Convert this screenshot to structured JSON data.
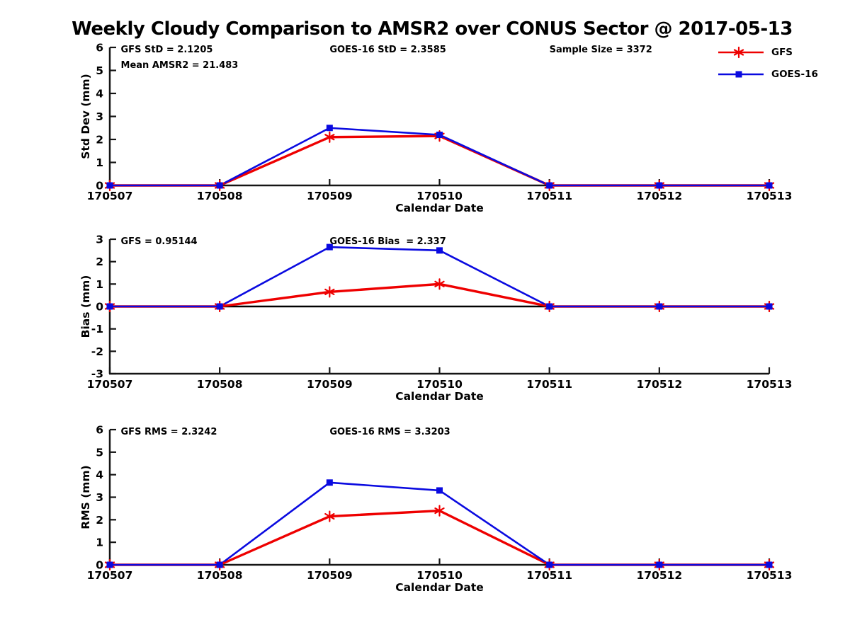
{
  "title": "Weekly Cloudy Comparison to AMSR2 over CONUS Sector @ 2017-05-13",
  "colors": {
    "gfs": "#ee0000",
    "goes": "#0a0ae0",
    "axis": "#151515",
    "zero_line": "#000000"
  },
  "legend": {
    "items": [
      {
        "name": "GFS",
        "color": "#ee0000",
        "marker": "asterisk"
      },
      {
        "name": "GOES-16",
        "color": "#0a0ae0",
        "marker": "square"
      }
    ]
  },
  "chart_data": [
    {
      "type": "line",
      "ylabel": "Std Dev (mm)",
      "xlabel": "Calendar Date",
      "categories": [
        "170507",
        "170508",
        "170509",
        "170510",
        "170511",
        "170512",
        "170513"
      ],
      "ylim": [
        0,
        6
      ],
      "yticks": [
        0,
        1,
        2,
        3,
        4,
        5,
        6
      ],
      "zero_line": false,
      "series": [
        {
          "name": "GFS",
          "marker": "asterisk",
          "color": "#ee0000",
          "values": [
            0,
            0,
            2.1,
            2.15,
            0,
            0,
            0
          ]
        },
        {
          "name": "GOES-16",
          "marker": "square",
          "color": "#0a0ae0",
          "values": [
            0,
            0,
            2.5,
            2.2,
            0,
            0,
            0
          ]
        }
      ],
      "annotations": [
        {
          "text": "GFS StD = 2.1205",
          "col": 0.1,
          "row": 0
        },
        {
          "text": "Mean AMSR2 = 21.483",
          "col": 0.1,
          "row": 1
        },
        {
          "text": "GOES-16 StD = 2.3585",
          "col": 2,
          "row": 0
        },
        {
          "text": "Sample Size = 3372",
          "col": 4,
          "row": 0
        }
      ]
    },
    {
      "type": "line",
      "ylabel": "Bias (mm)",
      "xlabel": "Calendar Date",
      "categories": [
        "170507",
        "170508",
        "170509",
        "170510",
        "170511",
        "170512",
        "170513"
      ],
      "ylim": [
        -3,
        3
      ],
      "yticks": [
        3,
        2,
        1,
        0,
        -1,
        -2,
        -3
      ],
      "zero_line": true,
      "series": [
        {
          "name": "GFS",
          "marker": "asterisk",
          "color": "#ee0000",
          "values": [
            0,
            0,
            0.65,
            1.0,
            0,
            0,
            0
          ]
        },
        {
          "name": "GOES-16",
          "marker": "square",
          "color": "#0a0ae0",
          "values": [
            0,
            0,
            2.65,
            2.5,
            0,
            0,
            0
          ]
        }
      ],
      "annotations": [
        {
          "text": "GFS = 0.95144",
          "col": 0.1,
          "row": 0
        },
        {
          "text": "GOES-16 Bias  = 2.337",
          "col": 2,
          "row": 0
        }
      ]
    },
    {
      "type": "line",
      "ylabel": "RMS (mm)",
      "xlabel": "Calendar Date",
      "categories": [
        "170507",
        "170508",
        "170509",
        "170510",
        "170511",
        "170512",
        "170513"
      ],
      "ylim": [
        0,
        6
      ],
      "yticks": [
        0,
        1,
        2,
        3,
        4,
        5,
        6
      ],
      "zero_line": false,
      "series": [
        {
          "name": "GFS",
          "marker": "asterisk",
          "color": "#ee0000",
          "values": [
            0,
            0,
            2.15,
            2.4,
            0,
            0,
            0
          ]
        },
        {
          "name": "GOES-16",
          "marker": "square",
          "color": "#0a0ae0",
          "values": [
            0,
            0,
            3.65,
            3.3,
            0,
            0,
            0
          ]
        }
      ],
      "annotations": [
        {
          "text": "GFS RMS = 2.3242",
          "col": 0.1,
          "row": 0
        },
        {
          "text": "GOES-16 RMS = 3.3203",
          "col": 2,
          "row": 0
        }
      ]
    }
  ]
}
